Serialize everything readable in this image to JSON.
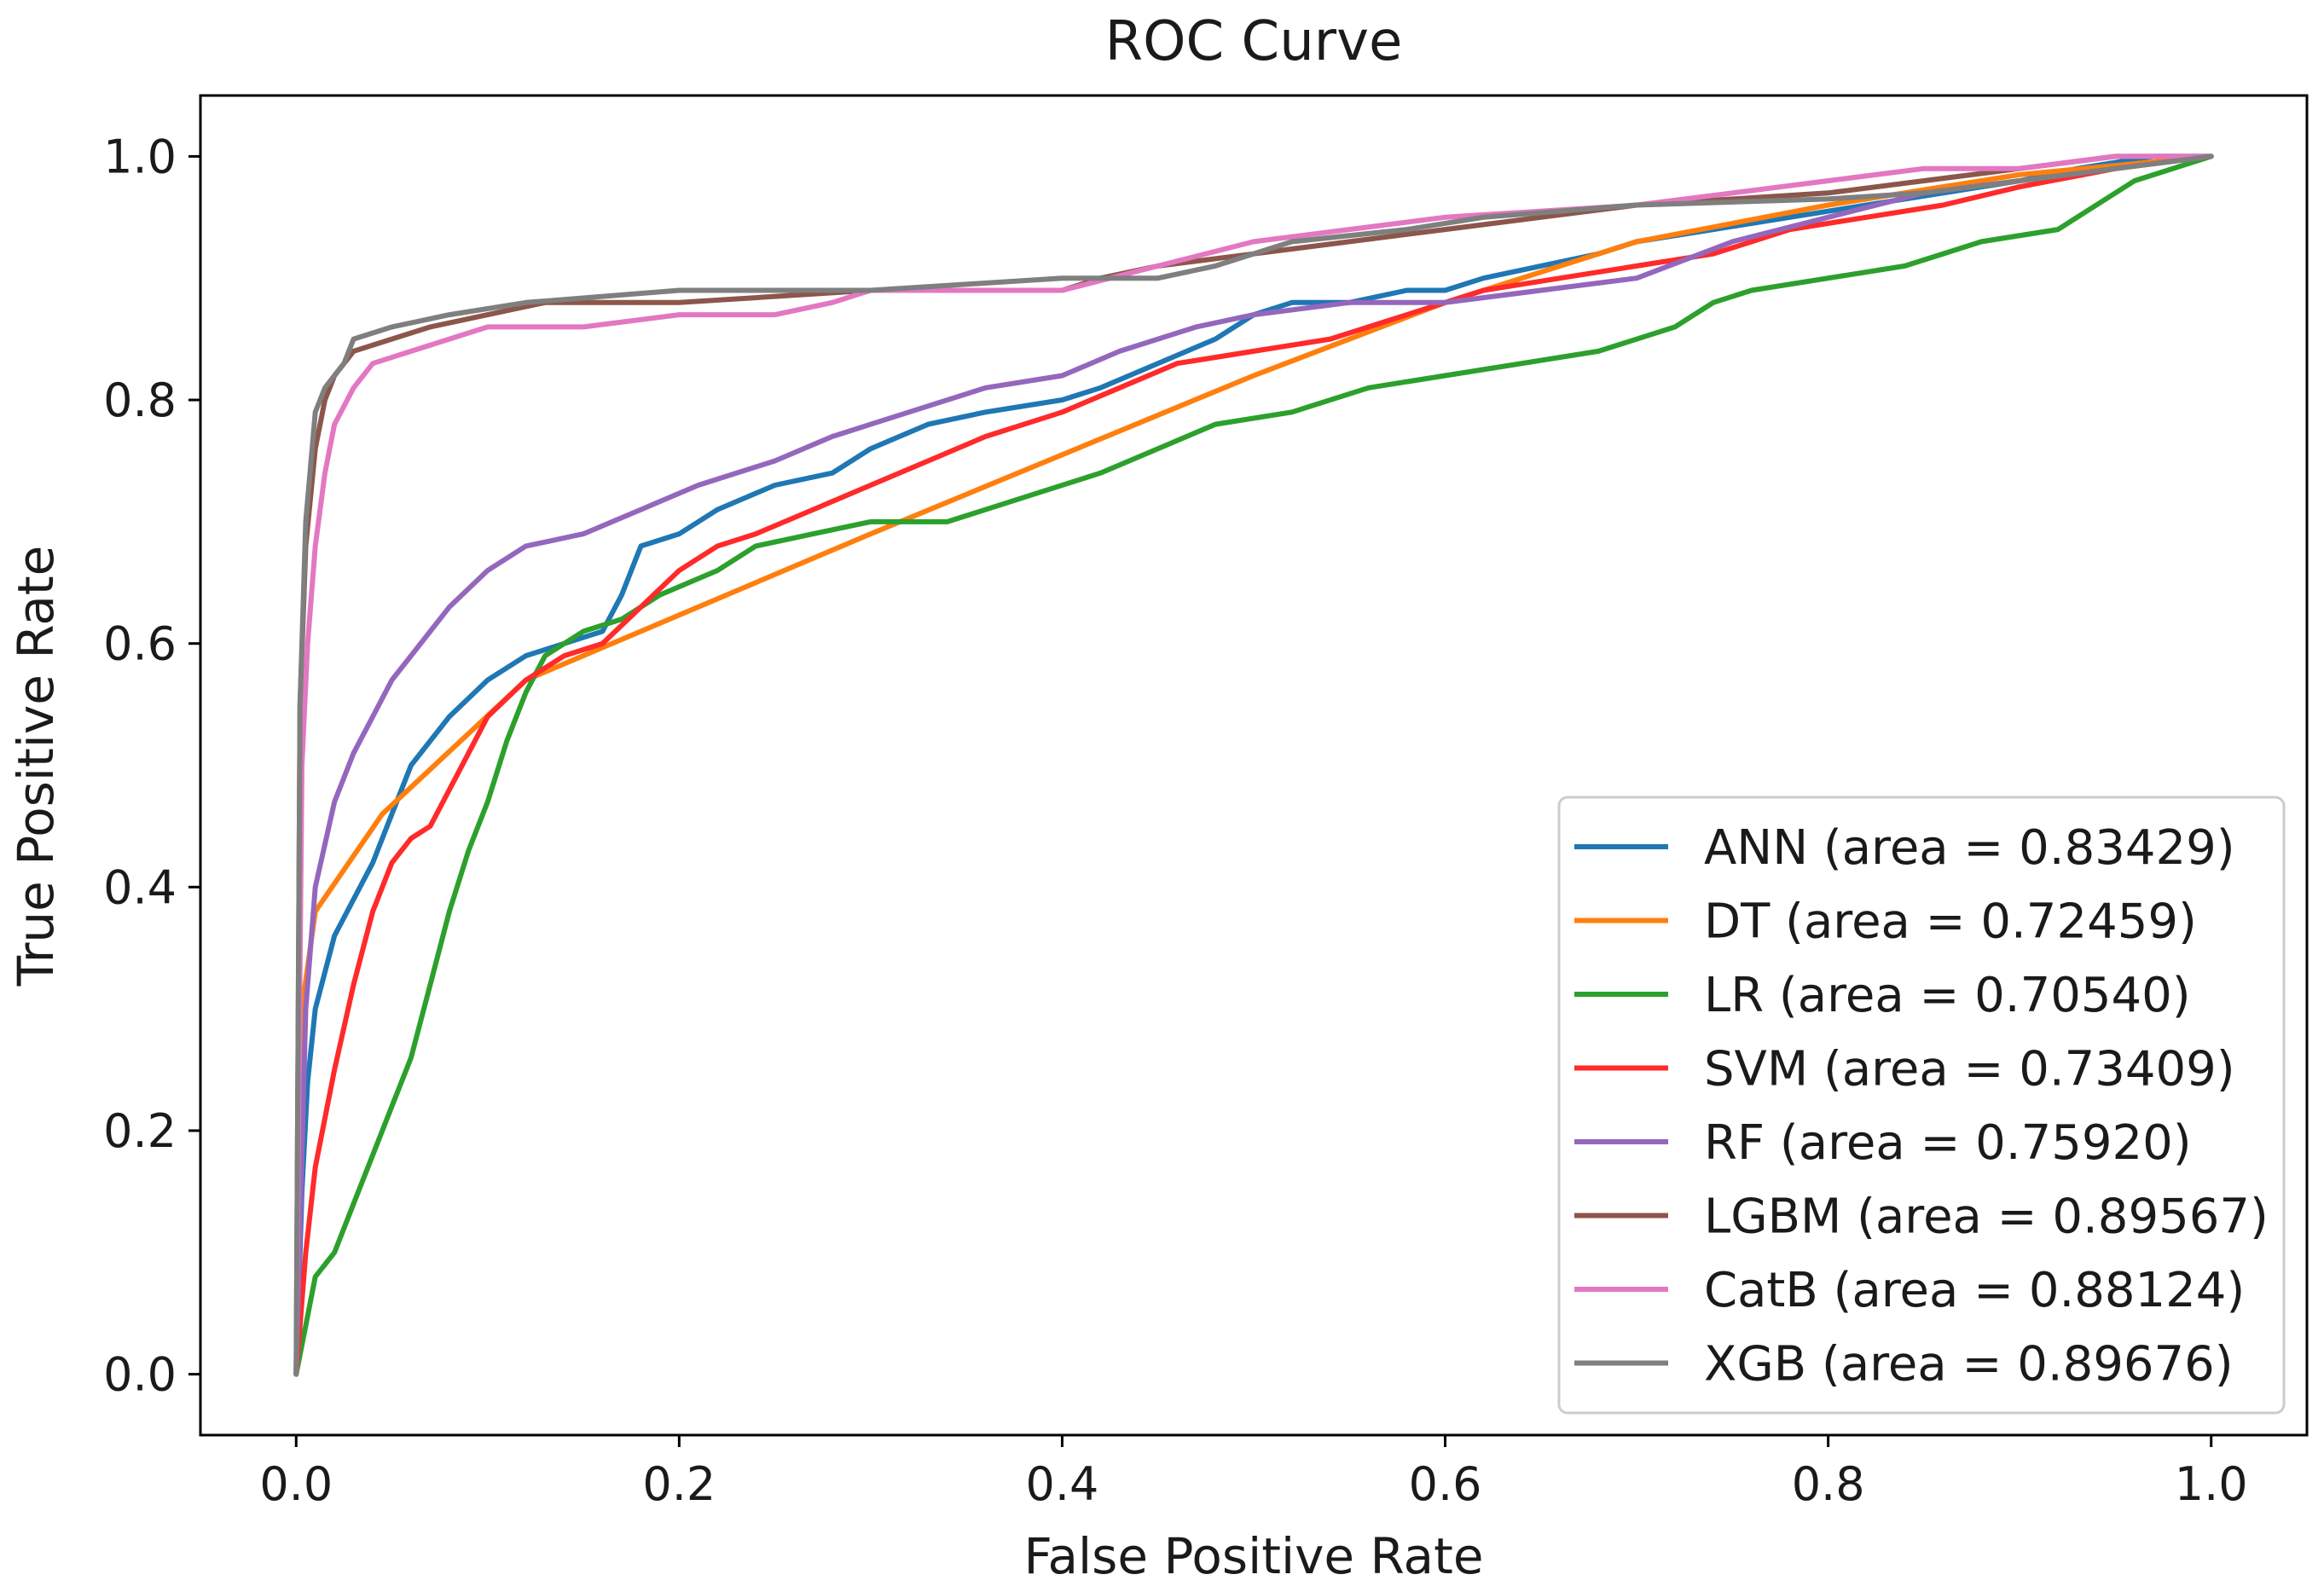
{
  "chart_data": {
    "type": "line",
    "title": "ROC Curve",
    "xlabel": "False Positive Rate",
    "ylabel": "True Positive Rate",
    "xlim": [
      -0.05,
      1.05
    ],
    "ylim": [
      -0.05,
      1.05
    ],
    "x_ticks": [
      "0.0",
      "0.2",
      "0.4",
      "0.6",
      "0.8",
      "1.0"
    ],
    "y_ticks": [
      "0.0",
      "0.2",
      "0.4",
      "0.6",
      "0.8",
      "1.0"
    ],
    "grid": false,
    "legend_position": "lower-right",
    "series": [
      {
        "name": "ANN",
        "label": "ANN (area = 0.83429)",
        "color": "#1f77b4",
        "points": [
          [
            0,
            0
          ],
          [
            0.003,
            0.15
          ],
          [
            0.006,
            0.24
          ],
          [
            0.01,
            0.3
          ],
          [
            0.02,
            0.36
          ],
          [
            0.03,
            0.39
          ],
          [
            0.04,
            0.42
          ],
          [
            0.05,
            0.46
          ],
          [
            0.06,
            0.5
          ],
          [
            0.08,
            0.54
          ],
          [
            0.1,
            0.57
          ],
          [
            0.12,
            0.59
          ],
          [
            0.14,
            0.6
          ],
          [
            0.16,
            0.61
          ],
          [
            0.17,
            0.64
          ],
          [
            0.18,
            0.68
          ],
          [
            0.2,
            0.69
          ],
          [
            0.22,
            0.71
          ],
          [
            0.25,
            0.73
          ],
          [
            0.28,
            0.74
          ],
          [
            0.3,
            0.76
          ],
          [
            0.33,
            0.78
          ],
          [
            0.36,
            0.79
          ],
          [
            0.4,
            0.8
          ],
          [
            0.42,
            0.81
          ],
          [
            0.45,
            0.83
          ],
          [
            0.48,
            0.85
          ],
          [
            0.5,
            0.87
          ],
          [
            0.52,
            0.88
          ],
          [
            0.55,
            0.88
          ],
          [
            0.58,
            0.89
          ],
          [
            0.6,
            0.89
          ],
          [
            0.62,
            0.9
          ],
          [
            0.65,
            0.91
          ],
          [
            0.68,
            0.92
          ],
          [
            0.7,
            0.93
          ],
          [
            0.74,
            0.94
          ],
          [
            0.78,
            0.95
          ],
          [
            0.82,
            0.96
          ],
          [
            0.86,
            0.97
          ],
          [
            0.9,
            0.98
          ],
          [
            0.93,
            0.99
          ],
          [
            0.97,
            1.0
          ],
          [
            1.0,
            1.0
          ]
        ]
      },
      {
        "name": "DT",
        "label": "DT (area = 0.72459)",
        "color": "#ff7f0e",
        "points": [
          [
            0,
            0
          ],
          [
            0.003,
            0.3
          ],
          [
            0.01,
            0.38
          ],
          [
            0.045,
            0.46
          ],
          [
            0.12,
            0.57
          ],
          [
            0.3,
            0.69
          ],
          [
            0.5,
            0.82
          ],
          [
            0.6,
            0.88
          ],
          [
            0.7,
            0.93
          ],
          [
            0.8,
            0.96
          ],
          [
            0.9,
            0.985
          ],
          [
            1.0,
            1.0
          ]
        ]
      },
      {
        "name": "LR",
        "label": "LR (area = 0.70540)",
        "color": "#2ca02c",
        "points": [
          [
            0,
            0
          ],
          [
            0.005,
            0.04
          ],
          [
            0.01,
            0.08
          ],
          [
            0.02,
            0.1
          ],
          [
            0.03,
            0.14
          ],
          [
            0.04,
            0.18
          ],
          [
            0.05,
            0.22
          ],
          [
            0.06,
            0.26
          ],
          [
            0.07,
            0.32
          ],
          [
            0.08,
            0.38
          ],
          [
            0.09,
            0.43
          ],
          [
            0.1,
            0.47
          ],
          [
            0.11,
            0.52
          ],
          [
            0.12,
            0.56
          ],
          [
            0.13,
            0.59
          ],
          [
            0.15,
            0.61
          ],
          [
            0.17,
            0.62
          ],
          [
            0.19,
            0.64
          ],
          [
            0.22,
            0.66
          ],
          [
            0.24,
            0.68
          ],
          [
            0.27,
            0.69
          ],
          [
            0.3,
            0.7
          ],
          [
            0.34,
            0.7
          ],
          [
            0.38,
            0.72
          ],
          [
            0.42,
            0.74
          ],
          [
            0.45,
            0.76
          ],
          [
            0.48,
            0.78
          ],
          [
            0.52,
            0.79
          ],
          [
            0.56,
            0.81
          ],
          [
            0.6,
            0.82
          ],
          [
            0.64,
            0.83
          ],
          [
            0.68,
            0.84
          ],
          [
            0.72,
            0.86
          ],
          [
            0.74,
            0.88
          ],
          [
            0.76,
            0.89
          ],
          [
            0.8,
            0.9
          ],
          [
            0.84,
            0.91
          ],
          [
            0.88,
            0.93
          ],
          [
            0.92,
            0.94
          ],
          [
            0.94,
            0.96
          ],
          [
            0.96,
            0.98
          ],
          [
            0.98,
            0.99
          ],
          [
            1.0,
            1.0
          ]
        ]
      },
      {
        "name": "SVM",
        "label": "SVM (area = 0.73409)",
        "color": "#ff2a2a",
        "points": [
          [
            0,
            0
          ],
          [
            0.005,
            0.1
          ],
          [
            0.01,
            0.17
          ],
          [
            0.02,
            0.25
          ],
          [
            0.03,
            0.32
          ],
          [
            0.04,
            0.38
          ],
          [
            0.05,
            0.42
          ],
          [
            0.06,
            0.44
          ],
          [
            0.07,
            0.45
          ],
          [
            0.08,
            0.48
          ],
          [
            0.09,
            0.51
          ],
          [
            0.1,
            0.54
          ],
          [
            0.12,
            0.57
          ],
          [
            0.14,
            0.59
          ],
          [
            0.16,
            0.6
          ],
          [
            0.18,
            0.63
          ],
          [
            0.2,
            0.66
          ],
          [
            0.22,
            0.68
          ],
          [
            0.24,
            0.69
          ],
          [
            0.27,
            0.71
          ],
          [
            0.3,
            0.73
          ],
          [
            0.33,
            0.75
          ],
          [
            0.36,
            0.77
          ],
          [
            0.4,
            0.79
          ],
          [
            0.43,
            0.81
          ],
          [
            0.46,
            0.83
          ],
          [
            0.5,
            0.84
          ],
          [
            0.54,
            0.85
          ],
          [
            0.58,
            0.87
          ],
          [
            0.62,
            0.89
          ],
          [
            0.66,
            0.9
          ],
          [
            0.7,
            0.91
          ],
          [
            0.74,
            0.92
          ],
          [
            0.78,
            0.94
          ],
          [
            0.82,
            0.95
          ],
          [
            0.86,
            0.96
          ],
          [
            0.9,
            0.975
          ],
          [
            0.95,
            0.99
          ],
          [
            1.0,
            1.0
          ]
        ]
      },
      {
        "name": "RF",
        "label": "RF (area = 0.75920)",
        "color": "#9467bd",
        "points": [
          [
            0,
            0
          ],
          [
            0.005,
            0.3
          ],
          [
            0.01,
            0.4
          ],
          [
            0.02,
            0.47
          ],
          [
            0.03,
            0.51
          ],
          [
            0.04,
            0.54
          ],
          [
            0.05,
            0.57
          ],
          [
            0.06,
            0.59
          ],
          [
            0.07,
            0.61
          ],
          [
            0.08,
            0.63
          ],
          [
            0.1,
            0.66
          ],
          [
            0.12,
            0.68
          ],
          [
            0.15,
            0.69
          ],
          [
            0.18,
            0.71
          ],
          [
            0.21,
            0.73
          ],
          [
            0.25,
            0.75
          ],
          [
            0.28,
            0.77
          ],
          [
            0.32,
            0.79
          ],
          [
            0.36,
            0.81
          ],
          [
            0.4,
            0.82
          ],
          [
            0.43,
            0.84
          ],
          [
            0.47,
            0.86
          ],
          [
            0.5,
            0.87
          ],
          [
            0.55,
            0.88
          ],
          [
            0.6,
            0.88
          ],
          [
            0.65,
            0.89
          ],
          [
            0.7,
            0.9
          ],
          [
            0.75,
            0.93
          ],
          [
            0.8,
            0.95
          ],
          [
            0.85,
            0.97
          ],
          [
            0.9,
            0.98
          ],
          [
            0.95,
            0.99
          ],
          [
            1.0,
            1.0
          ]
        ]
      },
      {
        "name": "LGBM",
        "label": "LGBM (area = 0.89567)",
        "color": "#8c564b",
        "points": [
          [
            0,
            0
          ],
          [
            0.002,
            0.55
          ],
          [
            0.005,
            0.68
          ],
          [
            0.01,
            0.76
          ],
          [
            0.015,
            0.8
          ],
          [
            0.02,
            0.82
          ],
          [
            0.03,
            0.84
          ],
          [
            0.05,
            0.85
          ],
          [
            0.07,
            0.86
          ],
          [
            0.1,
            0.87
          ],
          [
            0.13,
            0.88
          ],
          [
            0.2,
            0.88
          ],
          [
            0.3,
            0.89
          ],
          [
            0.4,
            0.89
          ],
          [
            0.42,
            0.9
          ],
          [
            0.45,
            0.91
          ],
          [
            0.5,
            0.92
          ],
          [
            0.55,
            0.93
          ],
          [
            0.6,
            0.94
          ],
          [
            0.65,
            0.95
          ],
          [
            0.7,
            0.96
          ],
          [
            0.8,
            0.97
          ],
          [
            0.85,
            0.98
          ],
          [
            0.9,
            0.99
          ],
          [
            0.95,
            1.0
          ],
          [
            1.0,
            1.0
          ]
        ]
      },
      {
        "name": "CatB",
        "label": "CatB (area = 0.88124)",
        "color": "#e377c2",
        "points": [
          [
            0,
            0
          ],
          [
            0.003,
            0.5
          ],
          [
            0.006,
            0.6
          ],
          [
            0.01,
            0.68
          ],
          [
            0.015,
            0.74
          ],
          [
            0.02,
            0.78
          ],
          [
            0.03,
            0.81
          ],
          [
            0.04,
            0.83
          ],
          [
            0.06,
            0.84
          ],
          [
            0.08,
            0.85
          ],
          [
            0.1,
            0.86
          ],
          [
            0.15,
            0.86
          ],
          [
            0.2,
            0.87
          ],
          [
            0.25,
            0.87
          ],
          [
            0.28,
            0.88
          ],
          [
            0.3,
            0.89
          ],
          [
            0.4,
            0.89
          ],
          [
            0.45,
            0.91
          ],
          [
            0.5,
            0.93
          ],
          [
            0.55,
            0.94
          ],
          [
            0.6,
            0.95
          ],
          [
            0.7,
            0.96
          ],
          [
            0.75,
            0.97
          ],
          [
            0.8,
            0.98
          ],
          [
            0.85,
            0.99
          ],
          [
            0.9,
            0.99
          ],
          [
            0.95,
            1.0
          ],
          [
            1.0,
            1.0
          ]
        ]
      },
      {
        "name": "XGB",
        "label": "XGB (area = 0.89676)",
        "color": "#7f7f7f",
        "points": [
          [
            0,
            0
          ],
          [
            0.002,
            0.55
          ],
          [
            0.005,
            0.7
          ],
          [
            0.01,
            0.79
          ],
          [
            0.015,
            0.81
          ],
          [
            0.025,
            0.83
          ],
          [
            0.03,
            0.85
          ],
          [
            0.05,
            0.86
          ],
          [
            0.08,
            0.87
          ],
          [
            0.12,
            0.88
          ],
          [
            0.2,
            0.89
          ],
          [
            0.3,
            0.89
          ],
          [
            0.4,
            0.9
          ],
          [
            0.45,
            0.9
          ],
          [
            0.48,
            0.91
          ],
          [
            0.52,
            0.93
          ],
          [
            0.58,
            0.94
          ],
          [
            0.62,
            0.95
          ],
          [
            0.7,
            0.96
          ],
          [
            0.8,
            0.965
          ],
          [
            0.85,
            0.97
          ],
          [
            0.9,
            0.98
          ],
          [
            0.95,
            0.99
          ],
          [
            1.0,
            1.0
          ]
        ]
      }
    ]
  }
}
